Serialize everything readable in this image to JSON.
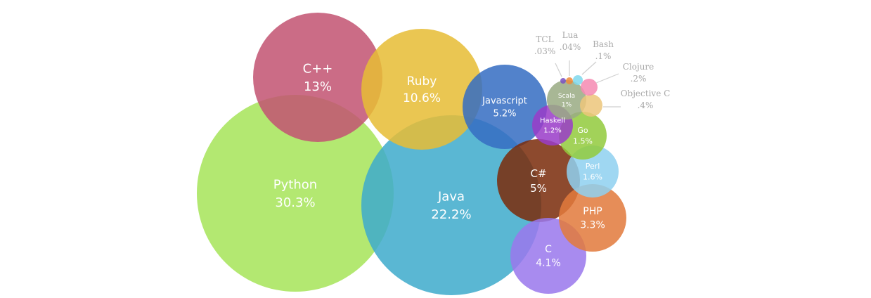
{
  "chart_data": {
    "type": "bubble",
    "unit": "%",
    "series": [
      {
        "name": "Python",
        "value_label": "30.3%",
        "value": 30.3,
        "color": "#a6e45a"
      },
      {
        "name": "Java",
        "value_label": "22.2%",
        "value": 22.2,
        "color": "#3fabcc"
      },
      {
        "name": "C++",
        "value_label": "13%",
        "value": 13,
        "color": "#c25472"
      },
      {
        "name": "Ruby",
        "value_label": "10.6%",
        "value": 10.6,
        "color": "#e6bd36"
      },
      {
        "name": "Javascript",
        "value_label": "5.2%",
        "value": 5.2,
        "color": "#356dc2"
      },
      {
        "name": "C#",
        "value_label": "5%",
        "value": 5,
        "color": "#7a2c0c"
      },
      {
        "name": "C",
        "value_label": "4.1%",
        "value": 4.1,
        "color": "#9a78ec"
      },
      {
        "name": "PHP",
        "value_label": "3.3%",
        "value": 3.3,
        "color": "#e27a3c"
      },
      {
        "name": "Perl",
        "value_label": "1.6%",
        "value": 1.6,
        "color": "#8fd0f0"
      },
      {
        "name": "Go",
        "value_label": "1.5%",
        "value": 1.5,
        "color": "#93cb3e"
      },
      {
        "name": "Haskell",
        "value_label": "1.2%",
        "value": 1.2,
        "color": "#9a3cc8"
      },
      {
        "name": "Scala",
        "value_label": "1%",
        "value": 1,
        "color": "#9aab84"
      },
      {
        "name": "Objective C",
        "value_label": ".4%",
        "value": 0.4,
        "color": "#ecc67c"
      },
      {
        "name": "Clojure",
        "value_label": ".2%",
        "value": 0.2,
        "color": "#f48ab2"
      },
      {
        "name": "Bash",
        "value_label": ".1%",
        "value": 0.1,
        "color": "#80d8ec"
      },
      {
        "name": "Lua",
        "value_label": ".04%",
        "value": 0.04,
        "color": "#ee8a3a"
      },
      {
        "name": "TCL",
        "value_label": ".03%",
        "value": 0.03,
        "color": "#7a52c2"
      }
    ]
  }
}
